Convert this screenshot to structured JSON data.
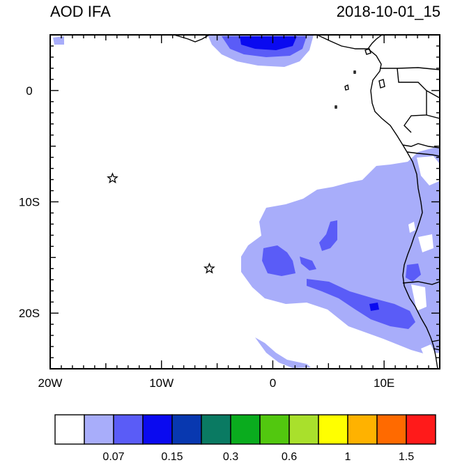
{
  "header": {
    "left_title": "AOD IFA",
    "right_title": "2018-10-01_15"
  },
  "map": {
    "lon_range": [
      -20,
      15
    ],
    "lat_range": [
      -25,
      5
    ],
    "x_ticks": [
      {
        "value": -20,
        "label": "20W"
      },
      {
        "value": -10,
        "label": "10W"
      },
      {
        "value": 0,
        "label": "0"
      },
      {
        "value": 10,
        "label": "10E"
      }
    ],
    "y_ticks": [
      {
        "value": 0,
        "label": "0"
      },
      {
        "value": -10,
        "label": "10S"
      },
      {
        "value": -20,
        "label": "20S"
      }
    ],
    "markers": [
      {
        "name": "star-marker-ascension",
        "lon": -14.4,
        "lat": -7.9
      },
      {
        "name": "star-marker-st-helena",
        "lon": -5.7,
        "lat": -16.0
      }
    ]
  },
  "colorbar": {
    "colors": [
      "#ffffff",
      "#a8adfa",
      "#5a5cf7",
      "#0a0af0",
      "#0838b0",
      "#0a7a62",
      "#0aac1e",
      "#52c80f",
      "#a9e02c",
      "#ffff00",
      "#ffb200",
      "#ff6a00",
      "#ff1a1a"
    ],
    "labels": [
      {
        "after_box": 2,
        "text": "0.07"
      },
      {
        "after_box": 4,
        "text": "0.15"
      },
      {
        "after_box": 6,
        "text": "0.3"
      },
      {
        "after_box": 8,
        "text": "0.6"
      },
      {
        "after_box": 10,
        "text": "1"
      },
      {
        "after_box": 12,
        "text": "1.5"
      }
    ]
  }
}
